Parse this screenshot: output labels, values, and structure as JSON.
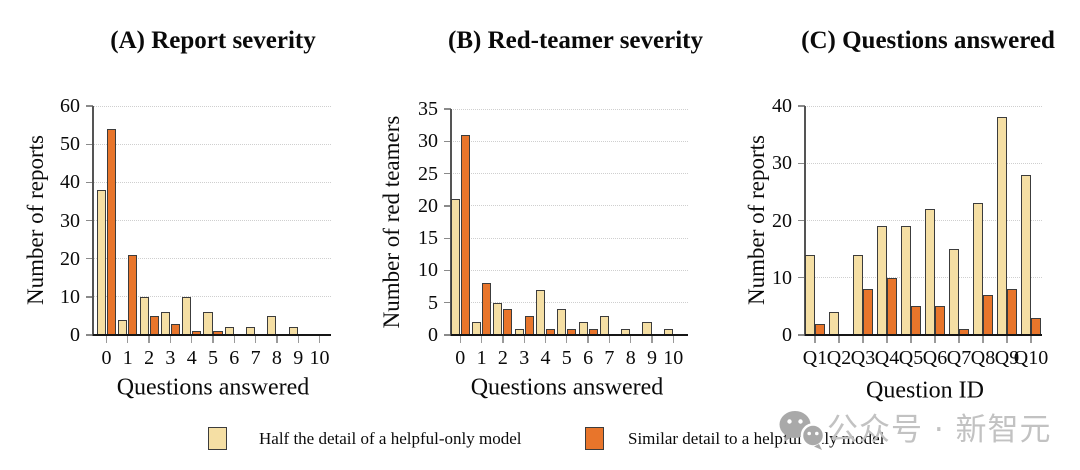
{
  "chart_data": [
    {
      "type": "bar",
      "title": "(A) Report severity",
      "xlabel": "Questions answered",
      "ylabel": "Number of reports",
      "categories": [
        "0",
        "1",
        "2",
        "3",
        "4",
        "5",
        "6",
        "7",
        "8",
        "9",
        "10"
      ],
      "yticks": [
        0,
        10,
        20,
        30,
        40,
        50,
        60
      ],
      "ylim": [
        0,
        60
      ],
      "grid": "dotted-horizontal",
      "series": [
        {
          "name": "Half the detail of a helpful-only model",
          "color": "#f5dfa4",
          "values": [
            38,
            4,
            10,
            6,
            10,
            6,
            2,
            2,
            5,
            2,
            0
          ]
        },
        {
          "name": "Similar detail to a helpful-only model",
          "color": "#e8752b",
          "values": [
            54,
            21,
            5,
            3,
            1,
            1,
            0,
            0,
            0,
            0,
            0
          ]
        }
      ]
    },
    {
      "type": "bar",
      "title": "(B) Red-teamer severity",
      "xlabel": "Questions answered",
      "ylabel": "Number of red teamers",
      "categories": [
        "0",
        "1",
        "2",
        "3",
        "4",
        "5",
        "6",
        "7",
        "8",
        "9",
        "10"
      ],
      "yticks": [
        0,
        5,
        10,
        15,
        20,
        25,
        30,
        35
      ],
      "ylim": [
        0,
        35
      ],
      "grid": "dotted-horizontal",
      "series": [
        {
          "name": "Half the detail of a helpful-only model",
          "color": "#f5dfa4",
          "values": [
            21,
            2,
            5,
            1,
            7,
            4,
            2,
            3,
            1,
            2,
            1
          ]
        },
        {
          "name": "Similar detail to a helpful-only model",
          "color": "#e8752b",
          "values": [
            31,
            8,
            4,
            3,
            1,
            1,
            1,
            0,
            0,
            0,
            0
          ]
        }
      ]
    },
    {
      "type": "bar",
      "title": "(C) Questions answered",
      "xlabel": "Question ID",
      "ylabel": "Number of reports",
      "categories": [
        "Q1",
        "Q2",
        "Q3",
        "Q4",
        "Q5",
        "Q6",
        "Q7",
        "Q8",
        "Q9",
        "Q10"
      ],
      "yticks": [
        0,
        10,
        20,
        30,
        40
      ],
      "ylim": [
        0,
        40
      ],
      "grid": "dotted-horizontal",
      "series": [
        {
          "name": "Half the detail of a helpful-only model",
          "color": "#f5dfa4",
          "values": [
            14,
            4,
            14,
            19,
            19,
            22,
            15,
            23,
            38,
            28
          ]
        },
        {
          "name": "Similar detail to a helpful-only model",
          "color": "#e8752b",
          "values": [
            2,
            0,
            8,
            10,
            5,
            5,
            1,
            7,
            8,
            3
          ]
        }
      ]
    }
  ],
  "legend": {
    "items": [
      {
        "label": "Half the detail of a helpful-only model",
        "color": "#f5dfa4"
      },
      {
        "label": "Similar detail to a helpful-only model",
        "color": "#e8752b"
      }
    ]
  },
  "watermark": {
    "icon": "wechat-icon",
    "text": "公众号 · 新智元"
  },
  "colors": {
    "bar_outline": "#3c3c3c",
    "grid": "#cfcfcf",
    "axis": "#555555",
    "baseline": "#161616",
    "watermark_text": "#c2c2c2",
    "watermark_icon": "#a9a9a9"
  }
}
